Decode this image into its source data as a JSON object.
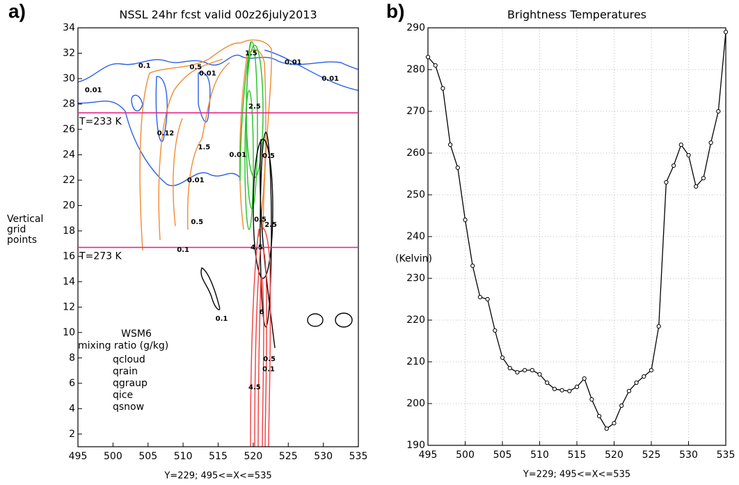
{
  "chart_data": [
    {
      "type": "contour",
      "panel_label": "a)",
      "title": "NSSL 24hr fcst valid 00z26july2013",
      "xlabel": "Y=229; 495<=X<=535",
      "ylabel": [
        "Vertical",
        "grid",
        "points"
      ],
      "xlim": [
        495,
        535
      ],
      "ylim": [
        1,
        34
      ],
      "xticks": [
        495,
        500,
        505,
        510,
        515,
        520,
        525,
        530,
        535
      ],
      "yticks": [
        2,
        4,
        6,
        8,
        10,
        12,
        14,
        16,
        18,
        20,
        22,
        24,
        26,
        28,
        30,
        32,
        34
      ],
      "legend_title": [
        "WSM6",
        "mixing ratio (g/kg)"
      ],
      "series": [
        {
          "name": "qcloud",
          "color": "#000000"
        },
        {
          "name": "qrain",
          "color": "#f03c3c"
        },
        {
          "name": "qgraup",
          "color": "#22c022"
        },
        {
          "name": "qice",
          "color": "#2a5ee8"
        },
        {
          "name": "qsnow",
          "color": "#f08a32"
        }
      ],
      "annotations": [
        {
          "text": "T=233 K",
          "y": 27.3,
          "color": "#e8288c"
        },
        {
          "text": "T=273 K",
          "y": 16.7,
          "color": "#e8288c"
        }
      ],
      "contour_labels": [
        {
          "text": "0.01",
          "x": 497.2,
          "y": 29.1,
          "color": "#2a5ee8"
        },
        {
          "text": "0.01",
          "x": 513.5,
          "y": 30.4,
          "color": "#2a5ee8"
        },
        {
          "text": "0.12",
          "x": 507.5,
          "y": 25.7,
          "color": "#2a5ee8"
        },
        {
          "text": "0.01",
          "x": 511.8,
          "y": 22.0,
          "color": "#2a5ee8"
        },
        {
          "text": "0.01",
          "x": 525.7,
          "y": 31.3,
          "color": "#2a5ee8"
        },
        {
          "text": "0.01",
          "x": 531.0,
          "y": 30.0,
          "color": "#2a5ee8"
        },
        {
          "text": "0.01",
          "x": 517.8,
          "y": 24.0,
          "color": "#2a5ee8"
        },
        {
          "text": "0.1",
          "x": 504.5,
          "y": 31.0,
          "color": "#f08a32"
        },
        {
          "text": "0.5",
          "x": 511.8,
          "y": 30.9,
          "color": "#f08a32"
        },
        {
          "text": "1.5",
          "x": 513.0,
          "y": 24.6,
          "color": "#f08a32"
        },
        {
          "text": "0.5",
          "x": 512.0,
          "y": 18.7,
          "color": "#f08a32"
        },
        {
          "text": "0.1",
          "x": 510.0,
          "y": 16.5,
          "color": "#f08a32"
        },
        {
          "text": "1.5",
          "x": 519.7,
          "y": 32.0,
          "color": "#f08a32"
        },
        {
          "text": "2.5",
          "x": 520.2,
          "y": 27.8,
          "color": "#f08a32"
        },
        {
          "text": "0.5",
          "x": 521.0,
          "y": 18.9,
          "color": "#f08a32"
        },
        {
          "text": "0.5",
          "x": 522.2,
          "y": 23.9,
          "color": "#000000"
        },
        {
          "text": "0.1",
          "x": 515.5,
          "y": 11.1,
          "color": "#000000"
        },
        {
          "text": "0.5",
          "x": 522.3,
          "y": 7.9,
          "color": "#000000"
        },
        {
          "text": "0.1",
          "x": 522.2,
          "y": 7.1,
          "color": "#000000"
        },
        {
          "text": "2.5",
          "x": 522.5,
          "y": 18.5,
          "color": "#000000"
        },
        {
          "text": "4.5",
          "x": 520.5,
          "y": 16.7,
          "color": "#f03c3c"
        },
        {
          "text": "6",
          "x": 521.2,
          "y": 11.6,
          "color": "#f03c3c"
        },
        {
          "text": "4.5",
          "x": 520.2,
          "y": 5.7,
          "color": "#f03c3c"
        }
      ]
    },
    {
      "type": "line",
      "panel_label": "b)",
      "title": "Brightness Temperatures",
      "xlabel": "Y=229; 495<=X<=535",
      "ylabel": "(Kelvin)",
      "xlim": [
        495,
        535
      ],
      "ylim": [
        190,
        290
      ],
      "xticks": [
        495,
        500,
        505,
        510,
        515,
        520,
        525,
        530,
        535
      ],
      "yticks": [
        190,
        200,
        210,
        220,
        230,
        240,
        250,
        260,
        270,
        280,
        290
      ],
      "grid": true,
      "color": "#000000",
      "marker": "circle",
      "x": [
        495,
        496,
        497,
        498,
        499,
        500,
        501,
        502,
        503,
        504,
        505,
        506,
        507,
        508,
        509,
        510,
        511,
        512,
        513,
        514,
        515,
        516,
        517,
        518,
        519,
        520,
        521,
        522,
        523,
        524,
        525,
        526,
        527,
        528,
        529,
        530,
        531,
        532,
        533,
        534,
        535
      ],
      "values": [
        283,
        281,
        275.5,
        262,
        256.5,
        244,
        233,
        225.5,
        225,
        217.5,
        211,
        208.5,
        207.5,
        208,
        208,
        207,
        205,
        203.5,
        203.2,
        203,
        204,
        206,
        201,
        197,
        194,
        195.3,
        199.5,
        203,
        205,
        206.5,
        208,
        218.5,
        253,
        257,
        262,
        259.5,
        252,
        254,
        262.5,
        270,
        289
      ]
    }
  ]
}
